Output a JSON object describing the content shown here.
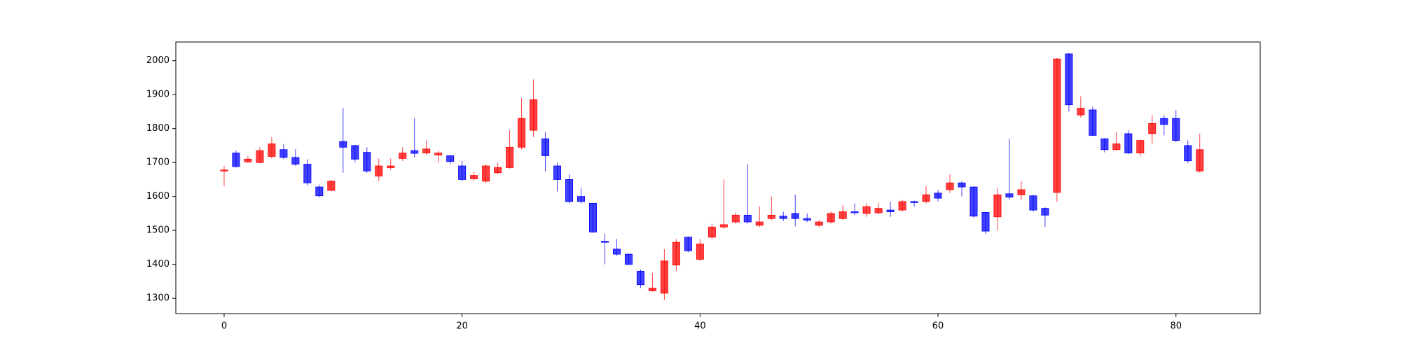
{
  "chart_data": {
    "type": "candlestick",
    "x": [
      0,
      1,
      2,
      3,
      4,
      5,
      6,
      7,
      8,
      9,
      10,
      11,
      12,
      13,
      14,
      15,
      16,
      17,
      18,
      19,
      20,
      21,
      22,
      23,
      24,
      25,
      26,
      27,
      28,
      29,
      30,
      31,
      32,
      33,
      34,
      35,
      36,
      37,
      38,
      39,
      40,
      41,
      42,
      43,
      44,
      45,
      46,
      47,
      48,
      49,
      50,
      51,
      52,
      53,
      54,
      55,
      56,
      57,
      58,
      59,
      60,
      61,
      62,
      63,
      64,
      65,
      66,
      67,
      68,
      69,
      70,
      71,
      72,
      73,
      74,
      75,
      76,
      77,
      78,
      79,
      80,
      81,
      82
    ],
    "open": [
      1675,
      1728,
      1702,
      1700,
      1718,
      1738,
      1715,
      1695,
      1628,
      1618,
      1762,
      1750,
      1730,
      1660,
      1685,
      1712,
      1735,
      1728,
      1722,
      1720,
      1690,
      1652,
      1645,
      1670,
      1685,
      1745,
      1795,
      1770,
      1690,
      1650,
      1600,
      1580,
      1468,
      1445,
      1430,
      1380,
      1322,
      1315,
      1398,
      1480,
      1415,
      1480,
      1510,
      1525,
      1545,
      1515,
      1535,
      1542,
      1550,
      1535,
      1515,
      1525,
      1535,
      1555,
      1550,
      1552,
      1560,
      1560,
      1585,
      1585,
      1610,
      1620,
      1640,
      1628,
      1553,
      1540,
      1608,
      1605,
      1602,
      1565,
      1612,
      2020,
      1840,
      1855,
      1770,
      1738,
      1785,
      1728,
      1785,
      1830,
      1830,
      1750,
      1675
    ],
    "high": [
      1690,
      1735,
      1720,
      1745,
      1775,
      1755,
      1740,
      1710,
      1635,
      1648,
      1860,
      1752,
      1745,
      1712,
      1712,
      1745,
      1830,
      1765,
      1735,
      1722,
      1705,
      1672,
      1695,
      1700,
      1795,
      1890,
      1945,
      1790,
      1700,
      1665,
      1625,
      1580,
      1490,
      1475,
      1432,
      1385,
      1375,
      1445,
      1475,
      1482,
      1475,
      1520,
      1650,
      1553,
      1695,
      1570,
      1600,
      1555,
      1605,
      1550,
      1530,
      1555,
      1575,
      1580,
      1580,
      1582,
      1585,
      1590,
      1588,
      1630,
      1620,
      1665,
      1645,
      1630,
      1555,
      1625,
      1770,
      1645,
      1605,
      1568,
      2008,
      2022,
      1895,
      1865,
      1772,
      1790,
      1795,
      1768,
      1840,
      1840,
      1855,
      1765,
      1785
    ],
    "low": [
      1630,
      1685,
      1698,
      1698,
      1712,
      1710,
      1690,
      1632,
      1598,
      1615,
      1670,
      1700,
      1670,
      1645,
      1678,
      1705,
      1715,
      1722,
      1700,
      1695,
      1645,
      1645,
      1640,
      1665,
      1682,
      1738,
      1775,
      1675,
      1615,
      1580,
      1580,
      1493,
      1400,
      1425,
      1398,
      1330,
      1320,
      1295,
      1380,
      1435,
      1410,
      1475,
      1505,
      1520,
      1520,
      1510,
      1530,
      1528,
      1512,
      1525,
      1510,
      1520,
      1530,
      1545,
      1540,
      1548,
      1540,
      1555,
      1570,
      1580,
      1585,
      1610,
      1600,
      1538,
      1490,
      1500,
      1590,
      1590,
      1555,
      1510,
      1585,
      1850,
      1832,
      1778,
      1730,
      1735,
      1725,
      1718,
      1755,
      1780,
      1760,
      1698,
      1670
    ],
    "close": [
      1678,
      1688,
      1710,
      1735,
      1755,
      1715,
      1695,
      1640,
      1602,
      1645,
      1745,
      1710,
      1675,
      1690,
      1690,
      1728,
      1727,
      1740,
      1728,
      1703,
      1650,
      1662,
      1690,
      1685,
      1745,
      1830,
      1885,
      1720,
      1650,
      1585,
      1585,
      1495,
      1465,
      1430,
      1400,
      1340,
      1330,
      1410,
      1465,
      1440,
      1460,
      1510,
      1517,
      1545,
      1525,
      1525,
      1545,
      1535,
      1535,
      1530,
      1525,
      1550,
      1555,
      1552,
      1570,
      1565,
      1555,
      1585,
      1582,
      1605,
      1595,
      1640,
      1628,
      1542,
      1498,
      1605,
      1598,
      1620,
      1560,
      1545,
      2005,
      1870,
      1860,
      1780,
      1738,
      1755,
      1728,
      1765,
      1815,
      1812,
      1765,
      1705,
      1738
    ],
    "up_color": "#ff0000",
    "down_color": "#0000ff",
    "xlim": [
      -4.06,
      87.08
    ],
    "xticks": [
      0,
      20,
      40,
      60,
      80
    ],
    "ylim": [
      1255,
      2055
    ],
    "yticks": [
      1300,
      1400,
      1500,
      1600,
      1700,
      1800,
      1900,
      2000
    ]
  }
}
